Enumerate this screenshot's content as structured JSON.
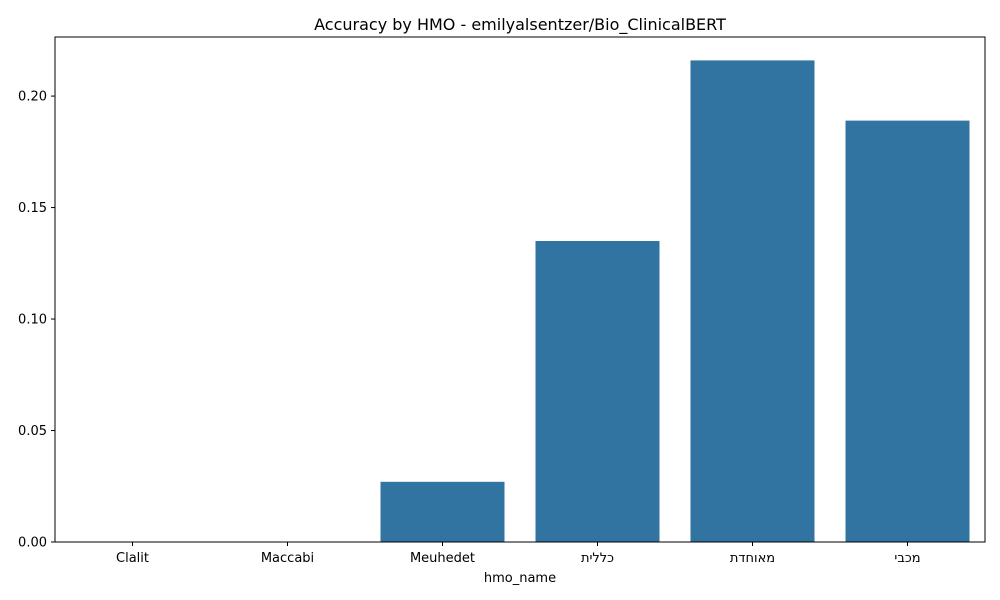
{
  "chart_data": {
    "type": "bar",
    "title": "Accuracy by HMO - emilyalsentzer/Bio_ClinicalBERT",
    "xlabel": "hmo_name",
    "ylabel": "",
    "categories": [
      "Clalit",
      "Maccabi",
      "Meuhedet",
      "כללית",
      "מאוחדת",
      "מכבי"
    ],
    "values": [
      0.0,
      0.0,
      0.027,
      0.135,
      0.216,
      0.189
    ],
    "ylim": [
      0,
      0.2265
    ],
    "yticks": [
      0.0,
      0.05,
      0.1,
      0.15,
      0.2
    ],
    "ytick_labels": [
      "0.00",
      "0.05",
      "0.10",
      "0.15",
      "0.20"
    ],
    "grid": false,
    "bar_color": "#3274a1"
  }
}
